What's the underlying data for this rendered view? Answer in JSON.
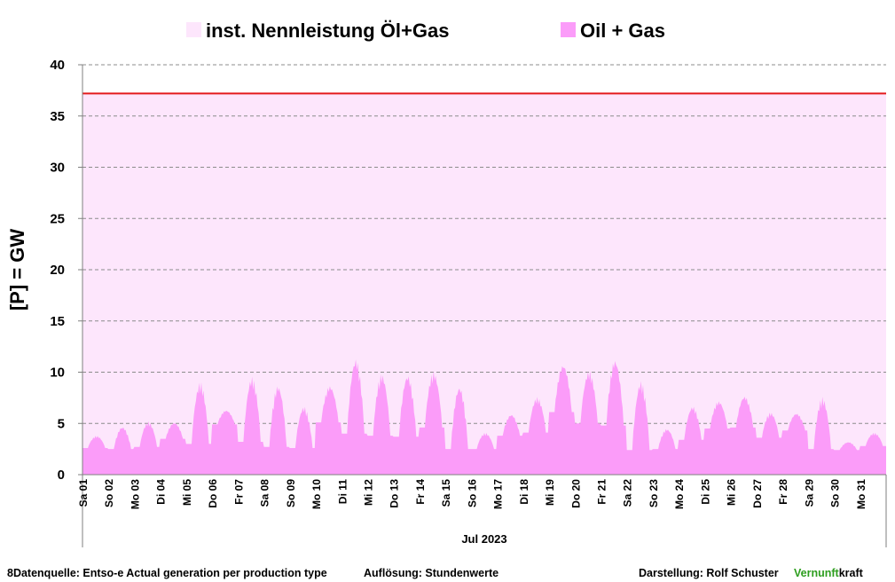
{
  "chart_data": {
    "type": "area",
    "ylabel": "[P]  = GW",
    "xlabel": "Jul 2023",
    "ylim": [
      0,
      40
    ],
    "yticks": [
      0,
      5,
      10,
      15,
      20,
      25,
      30,
      35,
      40
    ],
    "grid": true,
    "legend_position": "top",
    "categories": [
      "Sa 01",
      "So 02",
      "Mo 03",
      "Di 04",
      "Mi 05",
      "Do 06",
      "Fr 07",
      "Sa 08",
      "So 09",
      "Mo 10",
      "Di 11",
      "Mi 12",
      "Do 13",
      "Fr 14",
      "Sa 15",
      "So 16",
      "Mo 17",
      "Di 18",
      "Mi 19",
      "Do 20",
      "Fr 21",
      "Sa 22",
      "So 23",
      "Mo 24",
      "Di 25",
      "Mi 26",
      "Do 27",
      "Fr 28",
      "Sa 29",
      "So 30",
      "Mo 31"
    ],
    "series": [
      {
        "name": "inst. Nennleistung Öl+Gas",
        "kind": "capacity",
        "value": 37.2,
        "fill_color": "#fde6fc",
        "line_color": "#e31a1c"
      },
      {
        "name": "Oil + Gas",
        "kind": "area",
        "color": "#fb9cf9",
        "daily_min": [
          2.6,
          2.5,
          2.7,
          3.5,
          3.0,
          4.9,
          3.2,
          2.7,
          2.6,
          5.1,
          4.0,
          3.8,
          3.7,
          4.6,
          2.5,
          2.5,
          3.8,
          4.1,
          6.1,
          5.0,
          4.8,
          2.4,
          2.5,
          3.4,
          4.5,
          4.6,
          3.6,
          4.3,
          2.5,
          2.4,
          2.8
        ],
        "daily_max": [
          3.8,
          4.7,
          5.2,
          5.1,
          9.1,
          6.3,
          9.6,
          8.8,
          6.7,
          8.7,
          11.4,
          9.9,
          9.8,
          10.1,
          8.7,
          4.1,
          5.9,
          7.6,
          10.8,
          10.2,
          11.3,
          9.2,
          4.5,
          6.7,
          7.2,
          7.7,
          6.1,
          6.0,
          7.6,
          3.2,
          4.1
        ]
      }
    ]
  },
  "footer": {
    "source": "8Datenquelle: Entso-e  Actual generation per production type",
    "resolution": "Auflösung: Stundenwerte",
    "credit": "Darstellung:  Rolf Schuster",
    "brand_green": "Vernunft",
    "brand_black": "kraft"
  }
}
